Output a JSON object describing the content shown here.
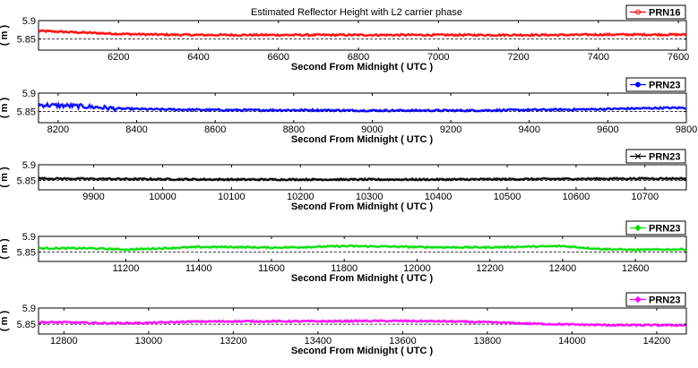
{
  "chart_data": [
    {
      "type": "line",
      "title": "Estimated Reflector Height with L2 carrier phase",
      "xlabel": "Second From Midnight ( UTC )",
      "ylabel": "( m )",
      "xlim": [
        6000,
        7620
      ],
      "ylim": [
        5.82,
        5.9
      ],
      "xticks": [
        6200,
        6400,
        6600,
        6800,
        7000,
        7200,
        7400,
        7600
      ],
      "yticks": [
        "5.85",
        "5.9"
      ],
      "reference_line": 5.85,
      "legend": "top-right",
      "series": [
        {
          "name": "PRN16",
          "color": "#ff0000",
          "x": [
            6000,
            6100,
            6200,
            6300,
            6400,
            6500,
            6600,
            6700,
            6800,
            6900,
            7000,
            7100,
            7200,
            7300,
            7400,
            7500,
            7620
          ],
          "y": [
            5.872,
            5.868,
            5.864,
            5.862,
            5.861,
            5.861,
            5.861,
            5.861,
            5.861,
            5.861,
            5.861,
            5.861,
            5.861,
            5.861,
            5.862,
            5.862,
            5.862
          ]
        }
      ]
    },
    {
      "type": "line",
      "title": "",
      "xlabel": "Second From Midnight ( UTC )",
      "ylabel": "( m )",
      "xlim": [
        8150,
        9800
      ],
      "ylim": [
        5.82,
        5.9
      ],
      "xticks": [
        8200,
        8400,
        8600,
        8800,
        9000,
        9200,
        9400,
        9600,
        9800
      ],
      "yticks": [
        "5.85",
        "5.9"
      ],
      "reference_line": 5.85,
      "legend": "top-right",
      "series": [
        {
          "name": "PRN23",
          "color": "#0000ff",
          "x": [
            8150,
            8250,
            8350,
            8450,
            8550,
            8650,
            8750,
            8850,
            8950,
            9050,
            9150,
            9250,
            9350,
            9450,
            9550,
            9650,
            9750,
            9800
          ],
          "y": [
            5.868,
            5.865,
            5.858,
            5.856,
            5.855,
            5.854,
            5.854,
            5.854,
            5.853,
            5.853,
            5.853,
            5.853,
            5.854,
            5.855,
            5.856,
            5.858,
            5.86,
            5.86
          ]
        }
      ]
    },
    {
      "type": "line",
      "title": "",
      "xlabel": "Second From Midnight ( UTC )",
      "ylabel": "( m )",
      "xlim": [
        9820,
        10760
      ],
      "ylim": [
        5.82,
        5.9
      ],
      "xticks": [
        9900,
        10000,
        10100,
        10200,
        10300,
        10400,
        10500,
        10600,
        10700
      ],
      "yticks": [
        "5.85",
        "5.9"
      ],
      "reference_line": 5.85,
      "legend": "top-right",
      "series": [
        {
          "name": "PRN23",
          "color": "#000000",
          "x": [
            9820,
            9900,
            10000,
            10100,
            10200,
            10300,
            10400,
            10500,
            10600,
            10700,
            10760
          ],
          "y": [
            5.856,
            5.855,
            5.854,
            5.853,
            5.853,
            5.853,
            5.853,
            5.854,
            5.855,
            5.856,
            5.856
          ]
        }
      ]
    },
    {
      "type": "line",
      "title": "",
      "xlabel": "Second From Midnight ( UTC )",
      "ylabel": "( m )",
      "xlim": [
        10960,
        12740
      ],
      "ylim": [
        5.82,
        5.9
      ],
      "xticks": [
        11200,
        11400,
        11600,
        11800,
        12000,
        12200,
        12400,
        12600
      ],
      "yticks": [
        "5.85",
        "5.9"
      ],
      "reference_line": 5.85,
      "legend": "top-right",
      "series": [
        {
          "name": "PRN23",
          "color": "#00dd00",
          "x": [
            10960,
            11100,
            11200,
            11300,
            11400,
            11500,
            11600,
            11700,
            11800,
            11900,
            12000,
            12100,
            12200,
            12300,
            12400,
            12500,
            12600,
            12740
          ],
          "y": [
            5.862,
            5.862,
            5.858,
            5.862,
            5.866,
            5.866,
            5.864,
            5.866,
            5.869,
            5.868,
            5.866,
            5.865,
            5.865,
            5.867,
            5.869,
            5.86,
            5.857,
            5.859
          ]
        }
      ]
    },
    {
      "type": "line",
      "title": "",
      "xlabel": "Second From Midnight ( UTC )",
      "ylabel": "( m )",
      "xlim": [
        12740,
        14270
      ],
      "ylim": [
        5.82,
        5.9
      ],
      "xticks": [
        12800,
        13000,
        13200,
        13400,
        13600,
        13800,
        14000,
        14200
      ],
      "yticks": [
        "5.85",
        "5.9"
      ],
      "reference_line": 5.85,
      "legend": "top-right",
      "series": [
        {
          "name": "PRN23",
          "color": "#ff00ff",
          "x": [
            12740,
            12800,
            12900,
            13000,
            13100,
            13200,
            13300,
            13400,
            13500,
            13600,
            13700,
            13800,
            13900,
            14000,
            14100,
            14200,
            14270
          ],
          "y": [
            5.856,
            5.856,
            5.853,
            5.854,
            5.858,
            5.859,
            5.859,
            5.859,
            5.86,
            5.86,
            5.859,
            5.856,
            5.852,
            5.849,
            5.847,
            5.847,
            5.847
          ]
        }
      ]
    }
  ]
}
